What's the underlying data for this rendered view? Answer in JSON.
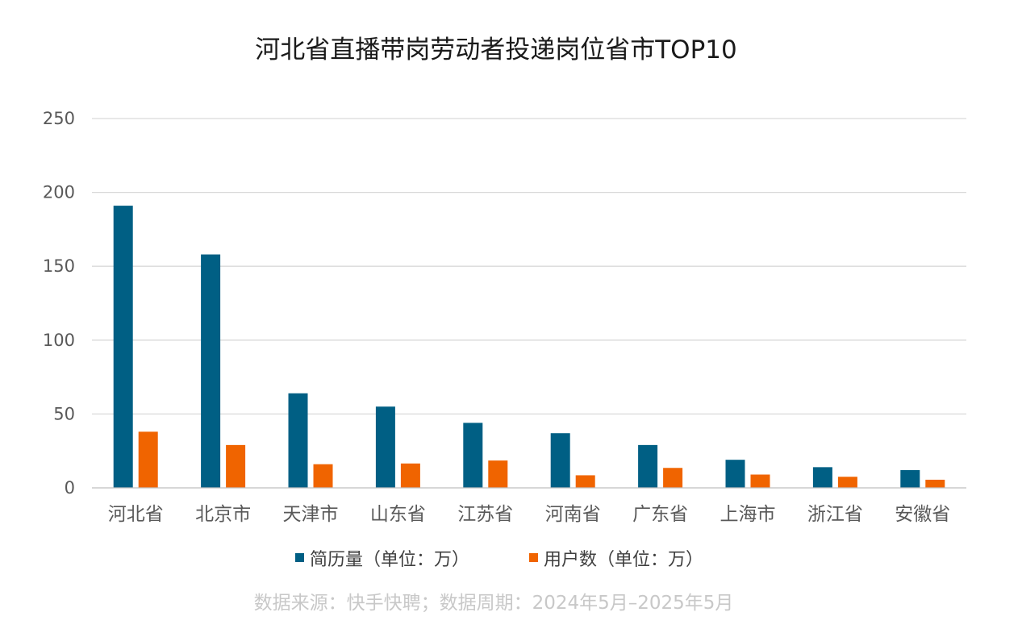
{
  "source_note": "数据来源：快手快聘；数据周期：2024年5月–2025年5月",
  "colors": {
    "series_1": "#005F84",
    "series_2": "#F06400"
  },
  "chart_data": {
    "type": "bar",
    "title": "河北省直播带岗劳动者投递岗位省市TOP10",
    "xlabel": "",
    "ylabel": "",
    "ylim": [
      0,
      250
    ],
    "yticks": [
      "0",
      "50",
      "100",
      "150",
      "200",
      "250"
    ],
    "grid": true,
    "legend_position": "bottom",
    "categories": [
      "河北省",
      "北京市",
      "天津市",
      "山东省",
      "江苏省",
      "河南省",
      "广东省",
      "上海市",
      "浙江省",
      "安徽省"
    ],
    "series": [
      {
        "name": "简历量（单位：万）",
        "values": [
          191,
          158,
          64,
          55,
          44,
          37,
          29,
          19,
          14,
          12
        ]
      },
      {
        "name": "用户数（单位：万）",
        "values": [
          38,
          29,
          16,
          16.5,
          18.5,
          8.5,
          13.5,
          9,
          7.5,
          5.5
        ]
      }
    ]
  }
}
